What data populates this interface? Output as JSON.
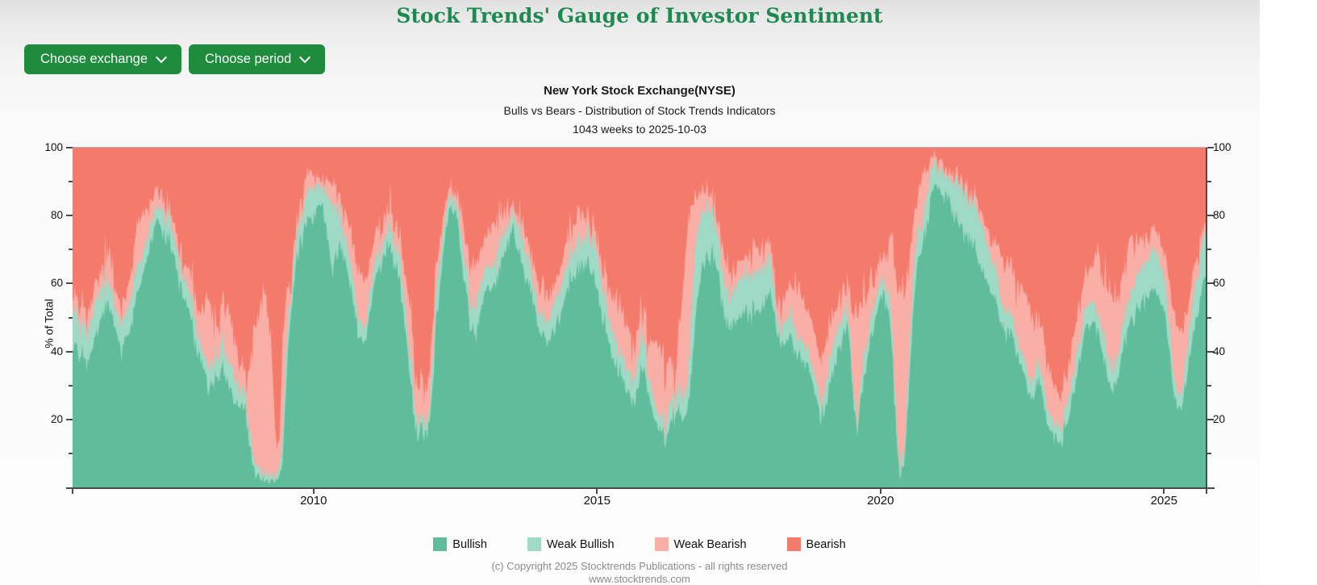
{
  "page": {
    "title": "Stock Trends' Gauge of Investor Sentiment"
  },
  "toolbar": {
    "exchange_button_label": "Choose exchange",
    "period_button_label": "Choose period",
    "icons": {
      "chevron_down": "v-shaped chevron drawn with CSS borders"
    }
  },
  "chart": {
    "title": "New York Stock Exchange(NYSE)",
    "subtitle": "Bulls vs Bears - Distribution of Stock Trends Indicators",
    "period_line": "1043 weeks to 2025-10-03",
    "y_axis_label": "% of Total"
  },
  "footer": {
    "copyright": "(c) Copyright 2025 Stocktrends Publications - all rights reserved",
    "website": "www.stocktrends.com"
  },
  "chart_data": {
    "type": "area",
    "stacked": "percent",
    "title": "New York Stock Exchange(NYSE)",
    "subtitle": "Bulls vs Bears - Distribution of Stock Trends Indicators",
    "period_label": "1043 weeks to 2025-10-03",
    "ylabel": "% of Total",
    "ylim": [
      0,
      100
    ],
    "x_range": [
      2005.75,
      2025.75
    ],
    "x_ticks": [
      2010,
      2015,
      2020,
      2025
    ],
    "y_ticks_major": [
      20,
      40,
      60,
      80,
      100
    ],
    "y_ticks_minor": [
      10,
      30,
      50,
      70,
      90
    ],
    "grid": false,
    "legend_position": "bottom",
    "series": [
      {
        "name": "Bullish",
        "color": "#5FBD9B"
      },
      {
        "name": "Weak Bullish",
        "color": "#9EDAC6"
      },
      {
        "name": "Weak Bearish",
        "color": "#F9AEA6"
      },
      {
        "name": "Bearish",
        "color": "#F47A6B"
      }
    ],
    "stacking_order_bottom_to_top": [
      "Bullish",
      "Weak Bullish",
      "Weak Bearish",
      "Bearish"
    ],
    "samples_format": [
      "year_decimal",
      "bullish_pct",
      "weak_bullish_pct",
      "weak_bearish_pct"
    ],
    "bearish_rule": "bearish_pct = 100 - (bullish_pct + weak_bullish_pct + weak_bearish_pct)",
    "samples": [
      [
        2005.78,
        41,
        11,
        4
      ],
      [
        2005.9,
        38,
        9,
        7
      ],
      [
        2006.0,
        36,
        9,
        6
      ],
      [
        2006.15,
        44,
        10,
        5
      ],
      [
        2006.3,
        52,
        8,
        6
      ],
      [
        2006.4,
        54,
        7,
        9
      ],
      [
        2006.5,
        47,
        6,
        6
      ],
      [
        2006.62,
        40,
        8,
        5
      ],
      [
        2006.75,
        46,
        8,
        6
      ],
      [
        2006.87,
        56,
        9,
        10
      ],
      [
        2006.95,
        60,
        6,
        14
      ],
      [
        2007.1,
        71,
        6,
        6
      ],
      [
        2007.25,
        80,
        4,
        5
      ],
      [
        2007.35,
        76,
        6,
        4
      ],
      [
        2007.45,
        72,
        7,
        4
      ],
      [
        2007.55,
        66,
        6,
        4
      ],
      [
        2007.65,
        60,
        6,
        5
      ],
      [
        2007.78,
        53,
        6,
        5
      ],
      [
        2007.9,
        45,
        6,
        7
      ],
      [
        2008.0,
        40,
        5,
        8
      ],
      [
        2008.1,
        32,
        5,
        18
      ],
      [
        2008.2,
        29,
        6,
        18
      ],
      [
        2008.3,
        34,
        7,
        7
      ],
      [
        2008.4,
        36,
        7,
        13
      ],
      [
        2008.5,
        30,
        7,
        15
      ],
      [
        2008.6,
        26,
        8,
        12
      ],
      [
        2008.7,
        25,
        5,
        7
      ],
      [
        2008.8,
        22,
        5,
        6
      ],
      [
        2008.88,
        12,
        4,
        20
      ],
      [
        2008.95,
        5,
        3,
        38
      ],
      [
        2009.05,
        3,
        2,
        48
      ],
      [
        2009.15,
        2,
        2,
        53
      ],
      [
        2009.25,
        2,
        2,
        40
      ],
      [
        2009.33,
        2,
        2,
        12
      ],
      [
        2009.4,
        3,
        3,
        6
      ],
      [
        2009.45,
        8,
        6,
        30
      ],
      [
        2009.52,
        30,
        12,
        14
      ],
      [
        2009.6,
        52,
        6,
        4
      ],
      [
        2009.7,
        66,
        8,
        4
      ],
      [
        2009.8,
        74,
        7,
        5
      ],
      [
        2009.9,
        78,
        8,
        6
      ],
      [
        2010.0,
        80,
        10,
        3
      ],
      [
        2010.08,
        84,
        6,
        2
      ],
      [
        2010.17,
        82,
        6,
        3
      ],
      [
        2010.25,
        75,
        11,
        4
      ],
      [
        2010.33,
        62,
        20,
        5
      ],
      [
        2010.4,
        68,
        14,
        5
      ],
      [
        2010.5,
        72,
        8,
        5
      ],
      [
        2010.6,
        64,
        8,
        7
      ],
      [
        2010.7,
        55,
        6,
        10
      ],
      [
        2010.8,
        44,
        5,
        14
      ],
      [
        2010.9,
        42,
        4,
        14
      ],
      [
        2010.97,
        50,
        6,
        10
      ],
      [
        2011.05,
        57,
        5,
        8
      ],
      [
        2011.15,
        64,
        5,
        7
      ],
      [
        2011.25,
        68,
        5,
        6
      ],
      [
        2011.35,
        70,
        5,
        7
      ],
      [
        2011.45,
        66,
        6,
        6
      ],
      [
        2011.52,
        61,
        6,
        6
      ],
      [
        2011.6,
        50,
        6,
        9
      ],
      [
        2011.68,
        35,
        6,
        15
      ],
      [
        2011.75,
        25,
        5,
        13
      ],
      [
        2011.84,
        15,
        4,
        10
      ],
      [
        2011.92,
        18,
        4,
        12
      ],
      [
        2012.0,
        16,
        4,
        10
      ],
      [
        2012.08,
        25,
        8,
        10
      ],
      [
        2012.17,
        50,
        10,
        6
      ],
      [
        2012.3,
        72,
        6,
        4
      ],
      [
        2012.42,
        84,
        3,
        3
      ],
      [
        2012.52,
        80,
        3,
        2
      ],
      [
        2012.62,
        65,
        7,
        7
      ],
      [
        2012.73,
        50,
        7,
        10
      ],
      [
        2012.84,
        43,
        7,
        13
      ],
      [
        2012.95,
        52,
        8,
        11
      ],
      [
        2013.05,
        58,
        7,
        8
      ],
      [
        2013.15,
        58,
        6,
        13
      ],
      [
        2013.28,
        64,
        7,
        8
      ],
      [
        2013.4,
        70,
        6,
        6
      ],
      [
        2013.5,
        76,
        5,
        3
      ],
      [
        2013.62,
        70,
        8,
        4
      ],
      [
        2013.73,
        62,
        8,
        5
      ],
      [
        2013.85,
        57,
        5,
        5
      ],
      [
        2013.95,
        49,
        6,
        7
      ],
      [
        2014.1,
        44,
        5,
        10
      ],
      [
        2014.2,
        45,
        8,
        5
      ],
      [
        2014.33,
        49,
        8,
        5
      ],
      [
        2014.45,
        58,
        9,
        8
      ],
      [
        2014.57,
        62,
        8,
        8
      ],
      [
        2014.7,
        64,
        7,
        8
      ],
      [
        2014.82,
        66,
        8,
        4
      ],
      [
        2014.95,
        61,
        11,
        4
      ],
      [
        2015.08,
        51,
        10,
        4
      ],
      [
        2015.2,
        43,
        8,
        8
      ],
      [
        2015.32,
        36,
        7,
        12
      ],
      [
        2015.45,
        31,
        6,
        13
      ],
      [
        2015.56,
        28,
        6,
        12
      ],
      [
        2015.65,
        25,
        7,
        10
      ],
      [
        2015.72,
        30,
        8,
        10
      ],
      [
        2015.82,
        36,
        10,
        8
      ],
      [
        2015.9,
        28,
        6,
        10
      ],
      [
        2016.0,
        22,
        5,
        17
      ],
      [
        2016.1,
        17,
        4,
        21
      ],
      [
        2016.2,
        15,
        5,
        18
      ],
      [
        2016.3,
        19,
        6,
        12
      ],
      [
        2016.4,
        22,
        5,
        8
      ],
      [
        2016.5,
        20,
        6,
        30
      ],
      [
        2016.6,
        24,
        8,
        46
      ],
      [
        2016.68,
        35,
        20,
        28
      ],
      [
        2016.76,
        55,
        20,
        10
      ],
      [
        2016.85,
        64,
        16,
        6
      ],
      [
        2016.95,
        66,
        16,
        4
      ],
      [
        2017.05,
        68,
        12,
        4
      ],
      [
        2017.15,
        62,
        10,
        4
      ],
      [
        2017.25,
        50,
        9,
        8
      ],
      [
        2017.35,
        47,
        9,
        7
      ],
      [
        2017.45,
        49,
        10,
        6
      ],
      [
        2017.55,
        51,
        11,
        5
      ],
      [
        2017.65,
        52,
        11,
        5
      ],
      [
        2017.75,
        50,
        11,
        8
      ],
      [
        2017.85,
        52,
        12,
        6
      ],
      [
        2017.95,
        55,
        12,
        5
      ],
      [
        2018.05,
        57,
        10,
        5
      ],
      [
        2018.12,
        52,
        6,
        5
      ],
      [
        2018.2,
        45,
        5,
        6
      ],
      [
        2018.3,
        43,
        6,
        8
      ],
      [
        2018.4,
        44,
        7,
        8
      ],
      [
        2018.5,
        39,
        6,
        13
      ],
      [
        2018.6,
        37,
        6,
        13
      ],
      [
        2018.7,
        36,
        5,
        11
      ],
      [
        2018.8,
        30,
        5,
        13
      ],
      [
        2018.9,
        24,
        5,
        12
      ],
      [
        2018.97,
        20,
        5,
        11
      ],
      [
        2019.07,
        26,
        7,
        11
      ],
      [
        2019.18,
        34,
        8,
        10
      ],
      [
        2019.3,
        43,
        7,
        8
      ],
      [
        2019.42,
        47,
        5,
        6
      ],
      [
        2019.5,
        32,
        4,
        16
      ],
      [
        2019.58,
        15,
        3,
        34
      ],
      [
        2019.66,
        26,
        6,
        22
      ],
      [
        2019.75,
        36,
        6,
        15
      ],
      [
        2019.85,
        45,
        6,
        10
      ],
      [
        2019.95,
        53,
        5,
        8
      ],
      [
        2020.05,
        59,
        4,
        6
      ],
      [
        2020.13,
        53,
        5,
        10
      ],
      [
        2020.21,
        40,
        6,
        30
      ],
      [
        2020.29,
        12,
        4,
        42
      ],
      [
        2020.35,
        3,
        2,
        55
      ],
      [
        2020.42,
        8,
        4,
        46
      ],
      [
        2020.5,
        28,
        10,
        28
      ],
      [
        2020.58,
        52,
        10,
        15
      ],
      [
        2020.66,
        67,
        9,
        9
      ],
      [
        2020.74,
        71,
        6,
        15
      ],
      [
        2020.82,
        80,
        9,
        5
      ],
      [
        2020.9,
        86,
        7,
        3
      ],
      [
        2021.0,
        89,
        6,
        2
      ],
      [
        2021.1,
        85,
        8,
        2
      ],
      [
        2021.2,
        86,
        6,
        2
      ],
      [
        2021.3,
        80,
        10,
        2
      ],
      [
        2021.4,
        77,
        11,
        2
      ],
      [
        2021.5,
        74,
        12,
        2
      ],
      [
        2021.6,
        72,
        12,
        3
      ],
      [
        2021.7,
        68,
        13,
        3
      ],
      [
        2021.8,
        64,
        13,
        3
      ],
      [
        2021.9,
        60,
        11,
        5
      ],
      [
        2022.0,
        56,
        10,
        6
      ],
      [
        2022.1,
        51,
        8,
        11
      ],
      [
        2022.2,
        46,
        6,
        13
      ],
      [
        2022.3,
        46,
        5,
        15
      ],
      [
        2022.4,
        41,
        5,
        16
      ],
      [
        2022.5,
        35,
        5,
        19
      ],
      [
        2022.6,
        28,
        5,
        21
      ],
      [
        2022.7,
        26,
        5,
        17
      ],
      [
        2022.77,
        34,
        6,
        12
      ],
      [
        2022.85,
        27,
        5,
        14
      ],
      [
        2022.95,
        19,
        4,
        14
      ],
      [
        2023.05,
        16,
        4,
        11
      ],
      [
        2023.15,
        13,
        4,
        8
      ],
      [
        2023.25,
        16,
        5,
        10
      ],
      [
        2023.35,
        24,
        5,
        10
      ],
      [
        2023.45,
        32,
        5,
        11
      ],
      [
        2023.55,
        41,
        6,
        11
      ],
      [
        2023.65,
        48,
        6,
        9
      ],
      [
        2023.75,
        50,
        5,
        10
      ],
      [
        2023.83,
        47,
        6,
        22
      ],
      [
        2023.9,
        41,
        6,
        14
      ],
      [
        2024.0,
        32,
        6,
        20
      ],
      [
        2024.1,
        27,
        6,
        22
      ],
      [
        2024.2,
        34,
        7,
        16
      ],
      [
        2024.3,
        43,
        8,
        14
      ],
      [
        2024.4,
        48,
        8,
        18
      ],
      [
        2024.5,
        52,
        9,
        10
      ],
      [
        2024.6,
        55,
        10,
        8
      ],
      [
        2024.7,
        57,
        11,
        7
      ],
      [
        2024.8,
        58,
        12,
        6
      ],
      [
        2024.9,
        56,
        12,
        7
      ],
      [
        2025.0,
        52,
        10,
        8
      ],
      [
        2025.08,
        42,
        8,
        12
      ],
      [
        2025.17,
        28,
        5,
        18
      ],
      [
        2025.25,
        23,
        4,
        20
      ],
      [
        2025.33,
        25,
        5,
        16
      ],
      [
        2025.42,
        35,
        8,
        10
      ],
      [
        2025.5,
        45,
        10,
        8
      ],
      [
        2025.58,
        52,
        12,
        6
      ],
      [
        2025.67,
        58,
        13,
        4
      ],
      [
        2025.75,
        62,
        14,
        2
      ]
    ]
  }
}
